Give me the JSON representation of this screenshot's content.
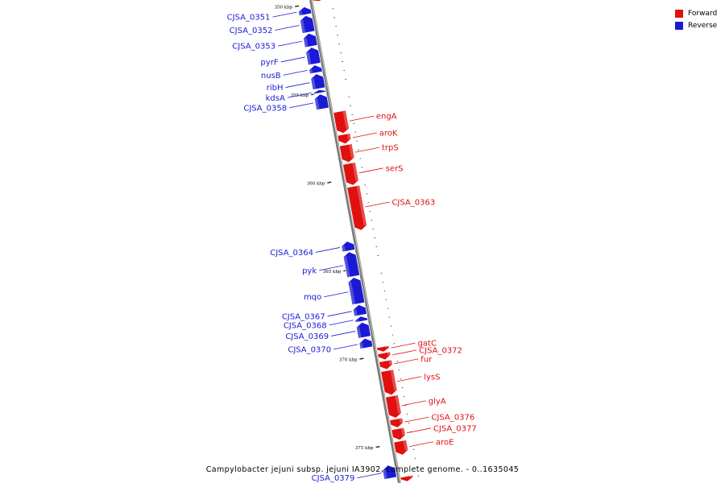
{
  "caption": "Campylobacter jejuni subsp. jejuni IA3902, complete genome. - 0..1635045",
  "legend": {
    "forward": {
      "label": "Forward",
      "color": "#e01010"
    },
    "reverse": {
      "label": "Reverse",
      "color": "#1a1ad6"
    }
  },
  "axis": {
    "start_kbp": 349.8,
    "end_kbp": 377.2,
    "tick_labels": [
      {
        "kbp": 350,
        "text": "350 kbp"
      },
      {
        "kbp": 355,
        "text": "355 kbp"
      },
      {
        "kbp": 360,
        "text": "360 kbp"
      },
      {
        "kbp": 365,
        "text": "365 kbp"
      },
      {
        "kbp": 370,
        "text": "370 kbp"
      },
      {
        "kbp": 375,
        "text": "375 kbp"
      }
    ]
  },
  "genes": [
    {
      "name": "",
      "strand": "forward",
      "start": 349.8,
      "end": 349.95
    },
    {
      "name": "CJSA_0351",
      "strand": "reverse",
      "start": 350.1,
      "end": 350.55
    },
    {
      "name": "CJSA_0352",
      "strand": "reverse",
      "start": 350.6,
      "end": 351.55
    },
    {
      "name": "CJSA_0353",
      "strand": "reverse",
      "start": 351.6,
      "end": 352.35
    },
    {
      "name": "pyrF",
      "strand": "reverse",
      "start": 352.4,
      "end": 353.35
    },
    {
      "name": "nusB",
      "strand": "reverse",
      "start": 353.4,
      "end": 353.85
    },
    {
      "name": "ribH",
      "strand": "reverse",
      "start": 353.9,
      "end": 354.75
    },
    {
      "name": "kdsA",
      "strand": "reverse",
      "start": 354.8,
      "end": 355.0
    },
    {
      "name": "CJSA_0358",
      "strand": "reverse",
      "start": 355.05,
      "end": 355.9
    },
    {
      "name": "engA",
      "strand": "forward",
      "start": 356.2,
      "end": 357.45
    },
    {
      "name": "aroK",
      "strand": "forward",
      "start": 357.5,
      "end": 358.05
    },
    {
      "name": "trpS",
      "strand": "forward",
      "start": 358.1,
      "end": 359.1
    },
    {
      "name": "serS",
      "strand": "forward",
      "start": 359.15,
      "end": 360.4
    },
    {
      "name": "CJSA_0363",
      "strand": "forward",
      "start": 360.45,
      "end": 362.95
    },
    {
      "name": "CJSA_0364",
      "strand": "reverse",
      "start": 363.4,
      "end": 363.95
    },
    {
      "name": "pyk",
      "strand": "reverse",
      "start": 364.0,
      "end": 365.4
    },
    {
      "name": "mqo",
      "strand": "reverse",
      "start": 365.45,
      "end": 366.95
    },
    {
      "name": "CJSA_0367",
      "strand": "reverse",
      "start": 367.0,
      "end": 367.6
    },
    {
      "name": "CJSA_0368",
      "strand": "reverse",
      "start": 367.65,
      "end": 367.95
    },
    {
      "name": "CJSA_0369",
      "strand": "reverse",
      "start": 368.0,
      "end": 368.85
    },
    {
      "name": "CJSA_0370",
      "strand": "reverse",
      "start": 368.9,
      "end": 369.45
    },
    {
      "name": "gatC",
      "strand": "forward",
      "start": 369.55,
      "end": 369.85
    },
    {
      "name": "CJSA_0372",
      "strand": "forward",
      "start": 369.9,
      "end": 370.3
    },
    {
      "name": "fur",
      "strand": "forward",
      "start": 370.35,
      "end": 370.85
    },
    {
      "name": "lysS",
      "strand": "forward",
      "start": 370.9,
      "end": 372.3
    },
    {
      "name": "glyA",
      "strand": "forward",
      "start": 372.35,
      "end": 373.6
    },
    {
      "name": "CJSA_0376",
      "strand": "forward",
      "start": 373.65,
      "end": 374.15
    },
    {
      "name": "CJSA_0377",
      "strand": "forward",
      "start": 374.2,
      "end": 374.85
    },
    {
      "name": "aroE",
      "strand": "forward",
      "start": 374.9,
      "end": 375.7
    },
    {
      "name": "CJSA_0379",
      "strand": "reverse",
      "start": 376.1,
      "end": 376.85
    },
    {
      "name": "",
      "strand": "forward",
      "start": 376.9,
      "end": 377.2
    }
  ]
}
